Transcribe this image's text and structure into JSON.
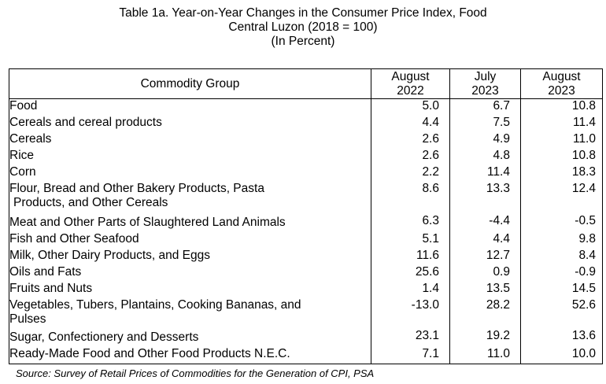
{
  "title": {
    "line1": "Table 1a.  Year-on-Year Changes in the Consumer Price Index, Food",
    "line2": "Central Luzon (2018 = 100)",
    "line3": "(In Percent)"
  },
  "table": {
    "headers": {
      "group": "Commodity Group",
      "col1": [
        "August",
        "2022"
      ],
      "col2": [
        "July",
        "2023"
      ],
      "col3": [
        "August",
        "2023"
      ]
    },
    "rows": [
      {
        "label": [
          "Food"
        ],
        "level": 0,
        "values": [
          "5.0",
          "6.7",
          "10.8"
        ]
      },
      {
        "label": [
          "Cereals and cereal products"
        ],
        "level": 1,
        "values": [
          "4.4",
          "7.5",
          "11.4"
        ]
      },
      {
        "label": [
          "Cereals"
        ],
        "level": 2,
        "values": [
          "2.6",
          "4.9",
          "11.0"
        ]
      },
      {
        "label": [
          "Rice"
        ],
        "level": 3,
        "values": [
          "2.6",
          "4.8",
          "10.8"
        ]
      },
      {
        "label": [
          "Corn"
        ],
        "level": 3,
        "values": [
          "2.2",
          "11.4",
          "18.3"
        ]
      },
      {
        "label": [
          "Flour, Bread and Other Bakery Products, Pasta",
          "Products, and Other Cereals"
        ],
        "level": 2,
        "values": [
          "8.6",
          "13.3",
          "12.4"
        ]
      },
      {
        "label": [
          "Meat and Other Parts of Slaughtered Land Animals"
        ],
        "level": 1,
        "values": [
          "6.3",
          "-4.4",
          "-0.5"
        ]
      },
      {
        "label": [
          "Fish and Other Seafood"
        ],
        "level": 1,
        "values": [
          "5.1",
          "4.4",
          "9.8"
        ]
      },
      {
        "label": [
          "Milk, Other Dairy Products, and Eggs"
        ],
        "level": 1,
        "values": [
          "11.6",
          "12.7",
          "8.4"
        ]
      },
      {
        "label": [
          "Oils and Fats"
        ],
        "level": 1,
        "values": [
          "25.6",
          "0.9",
          "-0.9"
        ]
      },
      {
        "label": [
          "Fruits and Nuts"
        ],
        "level": 1,
        "values": [
          "1.4",
          "13.5",
          "14.5"
        ]
      },
      {
        "label": [
          "Vegetables, Tubers, Plantains, Cooking Bananas, and",
          "Pulses"
        ],
        "level": 1,
        "values": [
          "-13.0",
          "28.2",
          "52.6"
        ]
      },
      {
        "label": [
          "Sugar, Confectionery and Desserts"
        ],
        "level": 1,
        "values": [
          "23.1",
          "19.2",
          "13.6"
        ]
      },
      {
        "label": [
          "Ready-Made Food and Other Food Products N.E.C."
        ],
        "level": 1,
        "values": [
          "7.1",
          "11.0",
          "10.0"
        ]
      }
    ]
  },
  "source": "Source: Survey of Retail Prices of Commodities for the Generation of CPI, PSA"
}
